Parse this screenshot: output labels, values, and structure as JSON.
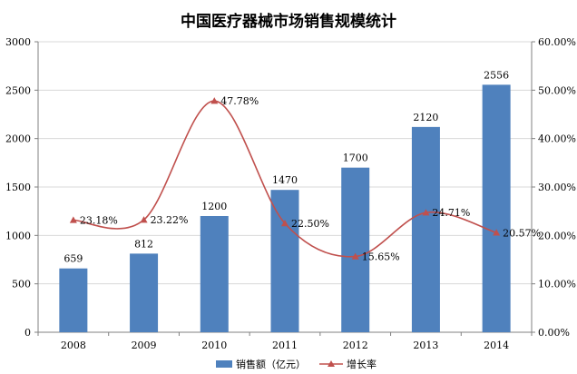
{
  "chart_data": {
    "type": "bar",
    "title": "中国医疗器械市场销售规模统计",
    "categories": [
      "2008",
      "2009",
      "2010",
      "2011",
      "2012",
      "2013",
      "2014"
    ],
    "series": [
      {
        "name": "销售额（亿元）",
        "type": "bar",
        "axis": "left",
        "color": "#4f81bd",
        "values": [
          659,
          812,
          1200,
          1470,
          1700,
          2120,
          2556
        ],
        "labels": [
          "659",
          "812",
          "1200",
          "1470",
          "1700",
          "2120",
          "2556"
        ]
      },
      {
        "name": "增长率",
        "type": "line",
        "axis": "right",
        "color": "#c0504d",
        "smooth": true,
        "marker": "triangle",
        "values": [
          23.18,
          23.22,
          47.78,
          22.5,
          15.65,
          24.71,
          20.57
        ],
        "labels": [
          "23.18%",
          "23.22%",
          "47.78%",
          "22.50%",
          "15.65%",
          "24.71%",
          "20.57%"
        ]
      }
    ],
    "y_left": {
      "range": [
        0,
        3000
      ],
      "ticks": [
        0,
        500,
        1000,
        1500,
        2000,
        2500,
        3000
      ],
      "tick_labels": [
        "0",
        "500",
        "1000",
        "1500",
        "2000",
        "2500",
        "3000"
      ]
    },
    "y_right": {
      "range": [
        0,
        60
      ],
      "ticks": [
        0,
        10,
        20,
        30,
        40,
        50,
        60
      ],
      "tick_labels": [
        "0.00%",
        "10.00%",
        "20.00%",
        "30.00%",
        "40.00%",
        "50.00%",
        "60.00%"
      ]
    },
    "grid": true,
    "legend_position": "bottom"
  }
}
